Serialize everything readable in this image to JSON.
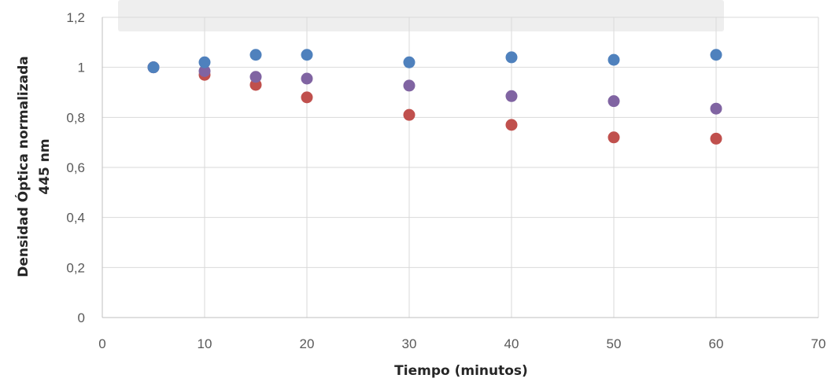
{
  "chart_data": {
    "type": "scatter",
    "title": "",
    "xlabel": "Tiempo (minutos)",
    "ylabel_lines": [
      "Densidad Óptica normalizada",
      "445 nm"
    ],
    "xlim": [
      0,
      70
    ],
    "ylim": [
      0,
      1.2
    ],
    "x_ticks": [
      0,
      10,
      20,
      30,
      40,
      50,
      60,
      70
    ],
    "x_tick_labels": [
      "0",
      "10",
      "20",
      "30",
      "40",
      "50",
      "60",
      "70"
    ],
    "y_ticks": [
      0,
      0.2,
      0.4,
      0.6,
      0.8,
      1.0,
      1.2
    ],
    "y_tick_labels": [
      "0",
      "0,2",
      "0,4",
      "0,6",
      "0,8",
      "1",
      "1,2"
    ],
    "grid": {
      "horizontal": true,
      "vertical": true
    },
    "legend": "none",
    "series": [
      {
        "color": "#4f81bd",
        "x": [
          5,
          10,
          15,
          20,
          30,
          40,
          50,
          60
        ],
        "values": [
          1.0,
          1.02,
          1.05,
          1.05,
          1.02,
          1.04,
          1.03,
          1.05
        ]
      },
      {
        "color": "#c0504d",
        "x": [
          5,
          10,
          15,
          20,
          30,
          40,
          50,
          60
        ],
        "values": [
          1.0,
          0.97,
          0.93,
          0.88,
          0.81,
          0.77,
          0.72,
          0.715
        ]
      },
      {
        "color": "#8064a2",
        "x": [
          5,
          10,
          15,
          20,
          30,
          40,
          50,
          60
        ],
        "values": [
          1.0,
          0.985,
          0.962,
          0.955,
          0.927,
          0.885,
          0.865,
          0.835
        ]
      }
    ]
  }
}
